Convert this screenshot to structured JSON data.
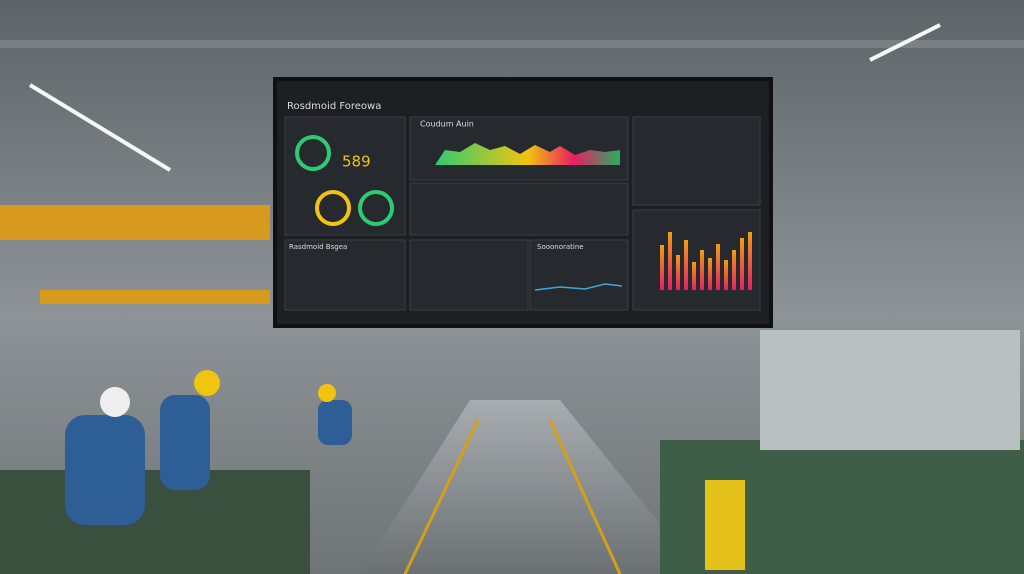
{
  "screen": {
    "title": "Rosdmoid Foreowa",
    "kpi": 589,
    "panels": [
      {
        "title": "Coudum Auin"
      },
      {
        "title": "Rasdmoid Bsgea"
      },
      {
        "title": "Sooonoratine"
      }
    ]
  }
}
